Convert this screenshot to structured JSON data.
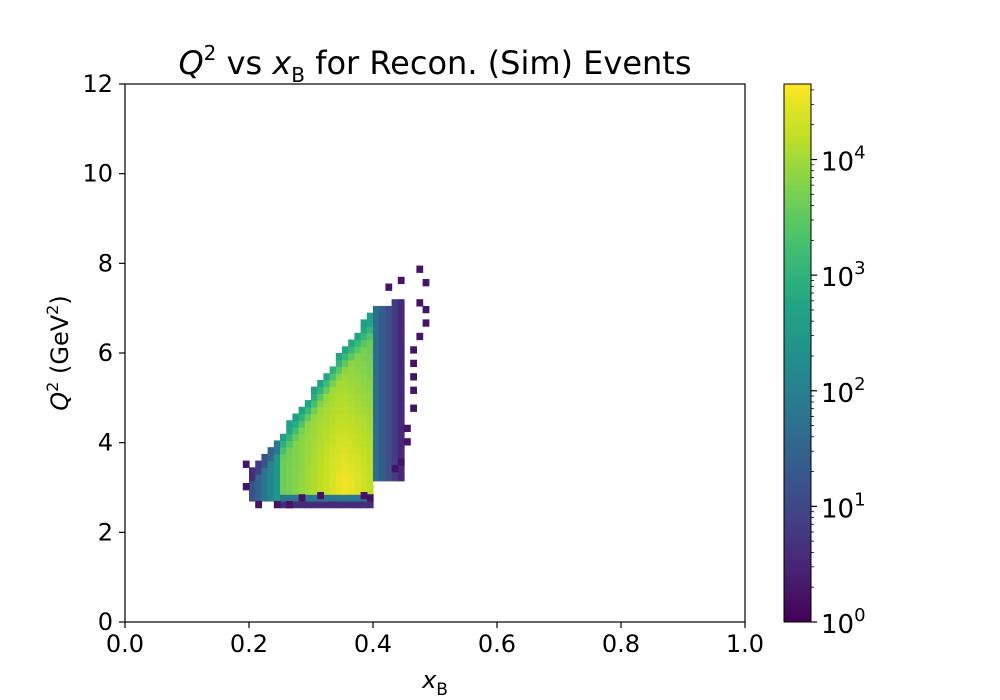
{
  "chart_data": {
    "type": "heatmap",
    "title": {
      "main": "Q",
      "main_sup": "2",
      "mid": " vs ",
      "var": "x",
      "var_sub": "B",
      "tail": " for Recon. (Sim) Events"
    },
    "xlabel": {
      "var": "x",
      "sub": "B"
    },
    "ylabel": {
      "var": "Q",
      "sup": "2",
      "unit": " (GeV",
      "unit_sup": "2",
      "close": ")"
    },
    "xlim": [
      0.0,
      1.0
    ],
    "ylim": [
      0,
      12
    ],
    "x_ticks": [
      "0.0",
      "0.2",
      "0.4",
      "0.6",
      "0.8",
      "1.0"
    ],
    "y_ticks": [
      "0",
      "2",
      "4",
      "6",
      "8",
      "10",
      "12"
    ],
    "grid": false,
    "bins": {
      "x_width": 0.01,
      "y_width": 0.15
    },
    "colorbar": {
      "scale": "log",
      "range": [
        1,
        45000
      ],
      "colormap": "viridis",
      "ticks": [
        {
          "base": "10",
          "exp": "0",
          "value": 1
        },
        {
          "base": "10",
          "exp": "1",
          "value": 10
        },
        {
          "base": "10",
          "exp": "2",
          "value": 100
        },
        {
          "base": "10",
          "exp": "3",
          "value": 1000
        },
        {
          "base": "10",
          "exp": "4",
          "value": 10000
        }
      ]
    },
    "region": {
      "x_min": 0.2,
      "x_core_min": 0.25,
      "x_core_max": 0.4,
      "x_max": 0.45,
      "q2_floor": 2.9,
      "q2_lower_edge": 2.55,
      "upper_edge": [
        [
          0.2,
          3.3
        ],
        [
          0.25,
          4.1
        ],
        [
          0.3,
          5.0
        ],
        [
          0.35,
          6.0
        ],
        [
          0.4,
          6.9
        ],
        [
          0.45,
          7.2
        ]
      ],
      "outliers": [
        [
          0.19,
          3.45
        ],
        [
          0.19,
          2.95
        ],
        [
          0.21,
          2.55
        ],
        [
          0.24,
          2.55
        ],
        [
          0.26,
          2.55
        ],
        [
          0.28,
          2.7
        ],
        [
          0.31,
          2.75
        ],
        [
          0.38,
          2.75
        ],
        [
          0.39,
          2.7
        ],
        [
          0.43,
          3.35
        ],
        [
          0.44,
          3.5
        ],
        [
          0.45,
          3.95
        ],
        [
          0.46,
          5.1
        ],
        [
          0.46,
          5.4
        ],
        [
          0.46,
          5.7
        ],
        [
          0.46,
          6.0
        ],
        [
          0.47,
          6.3
        ],
        [
          0.48,
          6.6
        ],
        [
          0.47,
          7.05
        ],
        [
          0.48,
          7.5
        ],
        [
          0.47,
          7.8
        ],
        [
          0.48,
          6.9
        ],
        [
          0.42,
          7.4
        ],
        [
          0.44,
          7.55
        ],
        [
          0.45,
          4.25
        ],
        [
          0.46,
          4.7
        ]
      ]
    }
  },
  "palette": {
    "viridis": [
      "#440154",
      "#482475",
      "#414487",
      "#355f8d",
      "#2a788e",
      "#21918c",
      "#22a884",
      "#44bf70",
      "#7ad151",
      "#bddf26",
      "#fde725"
    ]
  }
}
